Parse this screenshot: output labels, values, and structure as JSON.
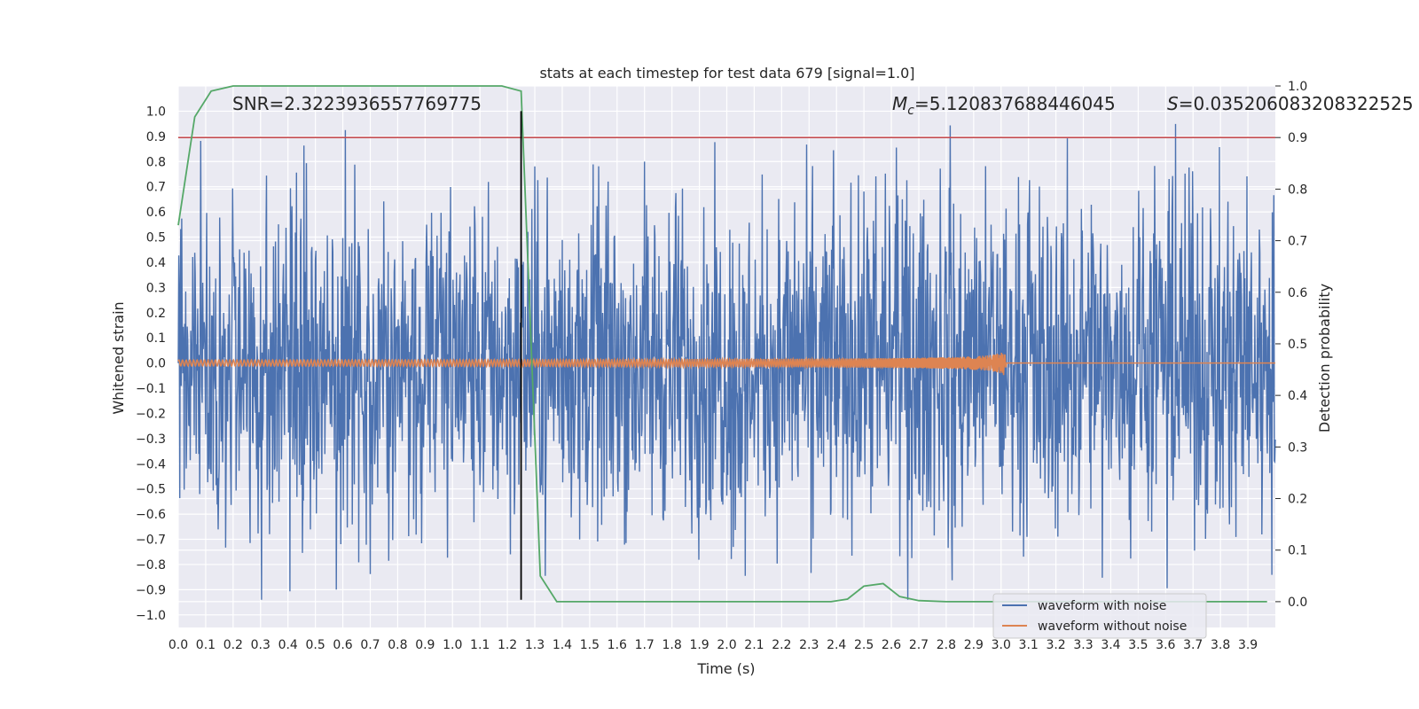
{
  "chart_data": {
    "type": "line",
    "title": "stats at each timestep for test data 679 [signal=1.0]",
    "xlabel": "Time (s)",
    "ylabel": "Whitened strain",
    "y2label": "Detection probability",
    "xlim": [
      0.0,
      4.0
    ],
    "ylim": [
      -1.05,
      1.1
    ],
    "y2lim": [
      -0.05,
      1.0
    ],
    "grid": true,
    "legend_position": "lower-right",
    "x_ticks": [
      "0.0",
      "0.1",
      "0.2",
      "0.3",
      "0.4",
      "0.5",
      "0.6",
      "0.7",
      "0.8",
      "0.9",
      "1.0",
      "1.1",
      "1.2",
      "1.3",
      "1.4",
      "1.5",
      "1.6",
      "1.7",
      "1.8",
      "1.9",
      "2.0",
      "2.1",
      "2.2",
      "2.3",
      "2.4",
      "2.5",
      "2.6",
      "2.7",
      "2.8",
      "2.9",
      "3.0",
      "3.1",
      "3.2",
      "3.3",
      "3.4",
      "3.5",
      "3.6",
      "3.7",
      "3.8",
      "3.9"
    ],
    "y_ticks": [
      "1.0",
      "0.9",
      "0.8",
      "0.7",
      "0.6",
      "0.5",
      "0.4",
      "0.3",
      "0.2",
      "0.1",
      "0.0",
      "-0.1",
      "-0.2",
      "-0.3",
      "-0.4",
      "-0.5",
      "-0.6",
      "-0.7",
      "-0.8",
      "-0.9",
      "-1.0"
    ],
    "y2_ticks": [
      "1.0",
      "0.9",
      "0.8",
      "0.7",
      "0.6",
      "0.5",
      "0.4",
      "0.3",
      "0.2",
      "0.1",
      "0.0"
    ],
    "annotations": {
      "snr": "SNR=2.3223936557769775",
      "mc_symbol": "M",
      "mc_sub": "c",
      "mc_value": "=5.120837688446045",
      "s_symbol": "S",
      "s_value": "=0.035206083208322525"
    },
    "series": [
      {
        "name": "waveform with noise",
        "axis": "left",
        "color": "#4c72b0",
        "description_values": {
          "min": -0.94,
          "max": 1.0,
          "typical_range": [
            -0.5,
            0.6
          ]
        }
      },
      {
        "name": "waveform without noise",
        "axis": "left",
        "color": "#dd8452",
        "chirp_end_time": 3.02,
        "final_amplitude": 0.06
      },
      {
        "axis": "right",
        "color": "#55a868",
        "x": [
          0.0,
          0.06,
          0.12,
          0.2,
          0.3,
          0.4,
          0.5,
          0.6,
          0.7,
          0.8,
          0.9,
          1.0,
          1.1,
          1.18,
          1.25,
          1.32,
          1.38,
          1.45,
          1.6,
          1.8,
          1.95,
          2.1,
          2.3,
          2.38,
          2.44,
          2.5,
          2.57,
          2.63,
          2.7,
          2.8,
          3.0,
          3.2,
          3.5,
          3.7,
          3.97
        ],
        "y": [
          0.73,
          0.94,
          0.99,
          1.0,
          1.0,
          1.0,
          1.0,
          1.0,
          1.0,
          1.0,
          1.0,
          1.0,
          1.0,
          1.0,
          0.99,
          0.05,
          0.0,
          0.0,
          0.0,
          0.0,
          0.0,
          0.0,
          0.0,
          0.0,
          0.005,
          0.03,
          0.035,
          0.01,
          0.002,
          0.0,
          0.0,
          0.0,
          0.0,
          0.0,
          0.0
        ]
      }
    ],
    "threshold_line": {
      "axis": "right",
      "value": 0.9,
      "color": "#c44e52"
    },
    "vertical_marker": {
      "x": 1.25,
      "y_from": -0.94,
      "y_to": 1.0,
      "color": "#000000"
    }
  }
}
